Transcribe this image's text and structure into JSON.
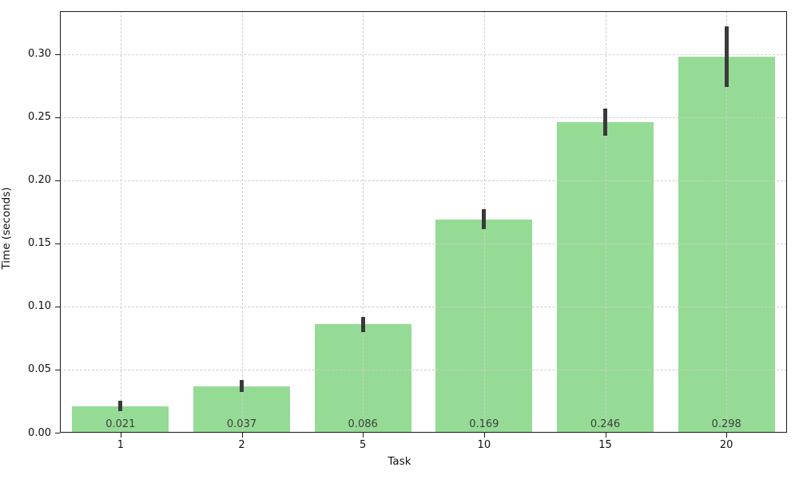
{
  "chart_data": {
    "type": "bar",
    "title": "",
    "xlabel": "Task",
    "ylabel": "Time (seconds)",
    "categories": [
      "1",
      "2",
      "5",
      "10",
      "15",
      "20"
    ],
    "values": [
      0.021,
      0.037,
      0.086,
      0.169,
      0.246,
      0.298
    ],
    "errors": [
      0.004,
      0.005,
      0.006,
      0.008,
      0.011,
      0.024
    ],
    "value_labels": [
      "0.021",
      "0.037",
      "0.086",
      "0.169",
      "0.246",
      "0.298"
    ],
    "ytick_values": [
      0.0,
      0.05,
      0.1,
      0.15,
      0.2,
      0.25,
      0.3
    ],
    "ytick_labels": [
      "0.00",
      "0.05",
      "0.10",
      "0.15",
      "0.20",
      "0.25",
      "0.30"
    ],
    "ylim": [
      0,
      0.334
    ],
    "bar_width_frac": 0.8,
    "grid": true,
    "legend": null,
    "colors": {
      "bar": "#95db95",
      "error_bar": "#3a3a3a",
      "grid": "#cfcfcf",
      "spine": "#1a1a1a",
      "value_label_text": "#3f3f3f",
      "tick_text": "#111111",
      "background": "#ffffff"
    }
  }
}
